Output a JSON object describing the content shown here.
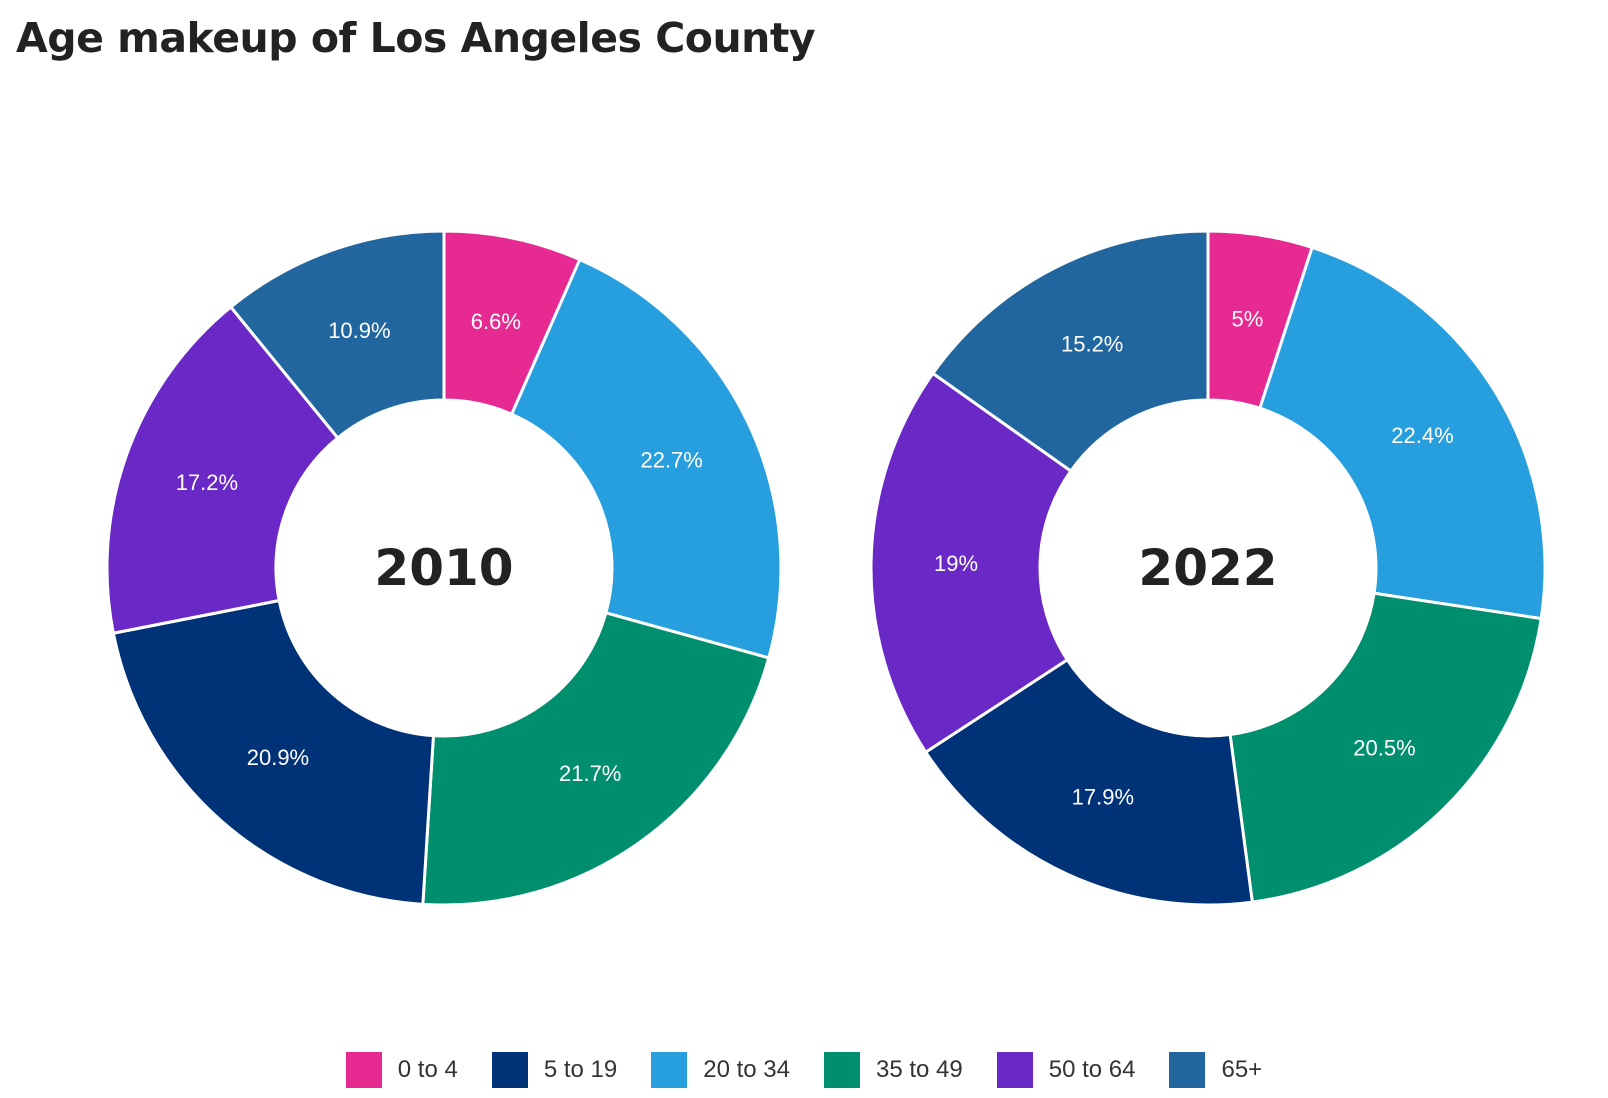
{
  "title": "Age makeup of Los Angeles County",
  "legend": [
    {
      "label": "0 to 4",
      "color": "#e62a91"
    },
    {
      "label": "5 to 19",
      "color": "#003278"
    },
    {
      "label": "20 to 34",
      "color": "#279fde"
    },
    {
      "label": "35 to 49",
      "color": "#008f6e"
    },
    {
      "label": "50 to 64",
      "color": "#6a29c6"
    },
    {
      "label": "65+",
      "color": "#22669f"
    }
  ],
  "chart_data": [
    {
      "type": "pie",
      "center_label": "2010",
      "categories": [
        "0 to 4",
        "20 to 34",
        "35 to 49",
        "5 to 19",
        "50 to 64",
        "65+"
      ],
      "values": [
        6.6,
        22.7,
        21.7,
        20.9,
        17.2,
        10.9
      ],
      "labels": [
        "6.6%",
        "22.7%",
        "21.7%",
        "20.9%",
        "17.2%",
        "10.9%"
      ],
      "colors": [
        "#e62a91",
        "#279fde",
        "#008f6e",
        "#003278",
        "#6a29c6",
        "#22669f"
      ]
    },
    {
      "type": "pie",
      "center_label": "2022",
      "categories": [
        "0 to 4",
        "20 to 34",
        "35 to 49",
        "5 to 19",
        "50 to 64",
        "65+"
      ],
      "values": [
        5,
        22.4,
        20.5,
        17.9,
        19,
        15.2
      ],
      "labels": [
        "5%",
        "22.4%",
        "20.5%",
        "17.9%",
        "19%",
        "15.2%"
      ],
      "colors": [
        "#e62a91",
        "#279fde",
        "#008f6e",
        "#003278",
        "#6a29c6",
        "#22669f"
      ]
    }
  ]
}
